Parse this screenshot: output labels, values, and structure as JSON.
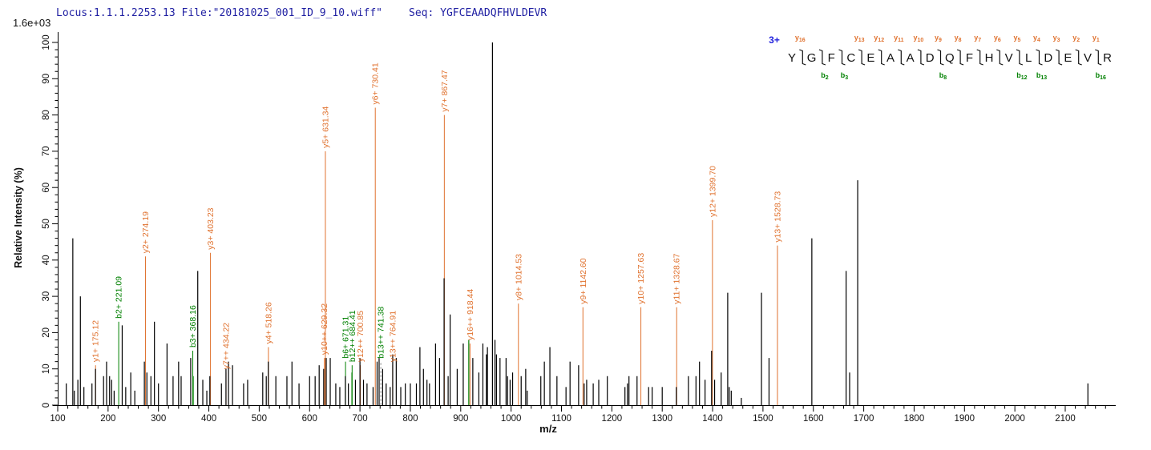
{
  "header": {
    "locus_text": "Locus:1.1.1.2253.13 File:\"20181025_001_ID_9_10.wiff\"",
    "seq_label": "Seq: ",
    "seq_value": "YGFCEAADQFHVLDEVR"
  },
  "colors": {
    "y_ion": "#E0722F",
    "b_ion": "#008000",
    "header_text": "#2121A3",
    "seq_text": "#2121A3",
    "charge_text": "#2222DD",
    "axis": "#000000",
    "peak": "#000000",
    "dashed_line": "#999999"
  },
  "chart_data": {
    "type": "bar",
    "style": "centroid-stick-mass-spectrum",
    "xlabel": "m/z",
    "ylabel": "Relative  Intensity (%)",
    "y_scale_note": "1.6e+03",
    "xlim": [
      100,
      2200
    ],
    "ylim": [
      0,
      100
    ],
    "x_major_ticks": [
      100,
      200,
      300,
      400,
      500,
      600,
      700,
      800,
      900,
      1000,
      1100,
      1200,
      1300,
      1400,
      1500,
      1600,
      1700,
      1800,
      1900,
      2000,
      2100
    ],
    "x_minor_step": 20,
    "y_major_ticks": [
      0,
      10,
      20,
      30,
      40,
      50,
      60,
      70,
      80,
      90,
      100
    ],
    "y_minor_step": 2,
    "grid": false,
    "peaks_black": [
      [
        117,
        6
      ],
      [
        130,
        46
      ],
      [
        133,
        4
      ],
      [
        140,
        7
      ],
      [
        145,
        30
      ],
      [
        152,
        5
      ],
      [
        168,
        6
      ],
      [
        175,
        10
      ],
      [
        191,
        8
      ],
      [
        197,
        12
      ],
      [
        203,
        8
      ],
      [
        207,
        7
      ],
      [
        212,
        4
      ],
      [
        228,
        22
      ],
      [
        235,
        5
      ],
      [
        245,
        9
      ],
      [
        253,
        4
      ],
      [
        272,
        12
      ],
      [
        277,
        9
      ],
      [
        285,
        8
      ],
      [
        292,
        23
      ],
      [
        300,
        6
      ],
      [
        317,
        17
      ],
      [
        329,
        8
      ],
      [
        340,
        12
      ],
      [
        345,
        8
      ],
      [
        364,
        13
      ],
      [
        378,
        37
      ],
      [
        388,
        7
      ],
      [
        396,
        4
      ],
      [
        402,
        8
      ],
      [
        425,
        6
      ],
      [
        434,
        10
      ],
      [
        439,
        12
      ],
      [
        447,
        11
      ],
      [
        469,
        6
      ],
      [
        477,
        7
      ],
      [
        507,
        9
      ],
      [
        514,
        8
      ],
      [
        518,
        12
      ],
      [
        533,
        8
      ],
      [
        555,
        8
      ],
      [
        565,
        12
      ],
      [
        579,
        6
      ],
      [
        600,
        8
      ],
      [
        611,
        8
      ],
      [
        619,
        11
      ],
      [
        628,
        10
      ],
      [
        633,
        13
      ],
      [
        641,
        13
      ],
      [
        652,
        6
      ],
      [
        660,
        5
      ],
      [
        671,
        8
      ],
      [
        677,
        6
      ],
      [
        691,
        7
      ],
      [
        700,
        13
      ],
      [
        707,
        7
      ],
      [
        714,
        6
      ],
      [
        726,
        5
      ],
      [
        734,
        12
      ],
      [
        738,
        13
      ],
      [
        745,
        10
      ],
      [
        752,
        6
      ],
      [
        760,
        5
      ],
      [
        765,
        14
      ],
      [
        772,
        13
      ],
      [
        781,
        5
      ],
      [
        790,
        6
      ],
      [
        800,
        6
      ],
      [
        812,
        6
      ],
      [
        819,
        16
      ],
      [
        826,
        10
      ],
      [
        833,
        7
      ],
      [
        838,
        6
      ],
      [
        850,
        17
      ],
      [
        858,
        13
      ],
      [
        867,
        35
      ],
      [
        875,
        8
      ],
      [
        879,
        25
      ],
      [
        893,
        10
      ],
      [
        905,
        17
      ],
      [
        924,
        13
      ],
      [
        936,
        9
      ],
      [
        944,
        17
      ],
      [
        951,
        14
      ],
      [
        953,
        16
      ],
      [
        963,
        100
      ],
      [
        968,
        18
      ],
      [
        971,
        14
      ],
      [
        978,
        13
      ],
      [
        990,
        13
      ],
      [
        993,
        8
      ],
      [
        998,
        7
      ],
      [
        1003,
        9
      ],
      [
        1020,
        8
      ],
      [
        1029,
        10
      ],
      [
        1032,
        4
      ],
      [
        1059,
        8
      ],
      [
        1066,
        12
      ],
      [
        1077,
        16
      ],
      [
        1091,
        8
      ],
      [
        1109,
        5
      ],
      [
        1117,
        12
      ],
      [
        1134,
        11
      ],
      [
        1145,
        6
      ],
      [
        1150,
        7
      ],
      [
        1163,
        6
      ],
      [
        1174,
        7
      ],
      [
        1191,
        8
      ],
      [
        1226,
        5
      ],
      [
        1231,
        6
      ],
      [
        1234,
        8
      ],
      [
        1250,
        8
      ],
      [
        1273,
        5
      ],
      [
        1280,
        5
      ],
      [
        1300,
        5
      ],
      [
        1328,
        5
      ],
      [
        1352,
        8
      ],
      [
        1367,
        8
      ],
      [
        1374,
        12
      ],
      [
        1385,
        7
      ],
      [
        1398,
        15
      ],
      [
        1404,
        7
      ],
      [
        1417,
        9
      ],
      [
        1430,
        31
      ],
      [
        1433,
        5
      ],
      [
        1437,
        4
      ],
      [
        1457,
        2
      ],
      [
        1497,
        31
      ],
      [
        1512,
        13
      ],
      [
        1597,
        46
      ],
      [
        1665,
        37
      ],
      [
        1672,
        9
      ],
      [
        1688,
        62
      ],
      [
        2145,
        6
      ]
    ],
    "peaks_green": [
      [
        369,
        8
      ],
      [
        684,
        9
      ],
      [
        916,
        18
      ]
    ],
    "annotations": [
      {
        "label": "y1+ 175.12",
        "mz": 175.12,
        "ion": "y",
        "top_pct": 11
      },
      {
        "label": "b2+ 221.09",
        "mz": 221.09,
        "ion": "b",
        "top_pct": 23
      },
      {
        "label": "y2+ 274.19",
        "mz": 274.19,
        "ion": "y",
        "top_pct": 41
      },
      {
        "label": "b3+ 368.16",
        "mz": 368.16,
        "ion": "b",
        "top_pct": 15
      },
      {
        "label": "y3+ 403.23",
        "mz": 403.23,
        "ion": "y",
        "top_pct": 42
      },
      {
        "label": "y7++ 434.22",
        "mz": 434.22,
        "ion": "y",
        "top_pct": 9
      },
      {
        "label": "y4+ 518.26",
        "mz": 518.26,
        "ion": "y",
        "top_pct": 16
      },
      {
        "label": "y10++ 629.32",
        "mz": 629.32,
        "ion": "y",
        "top_pct": 13
      },
      {
        "label": "y5+ 631.34",
        "mz": 631.34,
        "ion": "y",
        "top_pct": 70
      },
      {
        "label": "b6+ 671.31",
        "mz": 671.31,
        "ion": "b",
        "top_pct": 12
      },
      {
        "label": "b12++ 684.41",
        "mz": 684.41,
        "ion": "b",
        "top_pct": 11
      },
      {
        "label": "y12++ 700.85",
        "mz": 700.85,
        "ion": "y",
        "top_pct": 11
      },
      {
        "label": "y6+ 730.41",
        "mz": 730.41,
        "ion": "y",
        "top_pct": 82
      },
      {
        "label": "b13++ 741.38",
        "mz": 741.38,
        "ion": "b",
        "top_pct": 12,
        "dashed": true
      },
      {
        "label": "y13++ 764.91",
        "mz": 764.91,
        "ion": "y",
        "top_pct": 11
      },
      {
        "label": "y7+ 867.47",
        "mz": 867.47,
        "ion": "y",
        "top_pct": 80
      },
      {
        "label": "y16++ 918.44",
        "mz": 918.44,
        "ion": "y",
        "top_pct": 17
      },
      {
        "label": "y8+ 1014.53",
        "mz": 1014.53,
        "ion": "y",
        "top_pct": 28
      },
      {
        "label": "y9+ 1142.60",
        "mz": 1142.6,
        "ion": "y",
        "top_pct": 27
      },
      {
        "label": "y10+ 1257.63",
        "mz": 1257.63,
        "ion": "y",
        "top_pct": 27
      },
      {
        "label": "y11+ 1328.67",
        "mz": 1328.67,
        "ion": "y",
        "top_pct": 27
      },
      {
        "label": "y12+ 1399.70",
        "mz": 1399.7,
        "ion": "y",
        "top_pct": 51
      },
      {
        "label": "y13+ 1528.73",
        "mz": 1528.73,
        "ion": "y",
        "top_pct": 44
      }
    ],
    "peptide": {
      "charge": "3+",
      "sequence": "YGFCEAADQFHVLDEVR",
      "y_ions": {
        "1": "y16",
        "4": "y13",
        "5": "y12",
        "6": "y11",
        "7": "y10",
        "8": "y9",
        "9": "y8",
        "10": "y7",
        "11": "y6",
        "12": "y5",
        "13": "y4",
        "14": "y3",
        "15": "y2",
        "16": "y1"
      },
      "b_ions": {
        "2": "b2",
        "3": "b3",
        "8": "b8",
        "12": "b12",
        "13": "b13",
        "16": "b16"
      }
    }
  }
}
